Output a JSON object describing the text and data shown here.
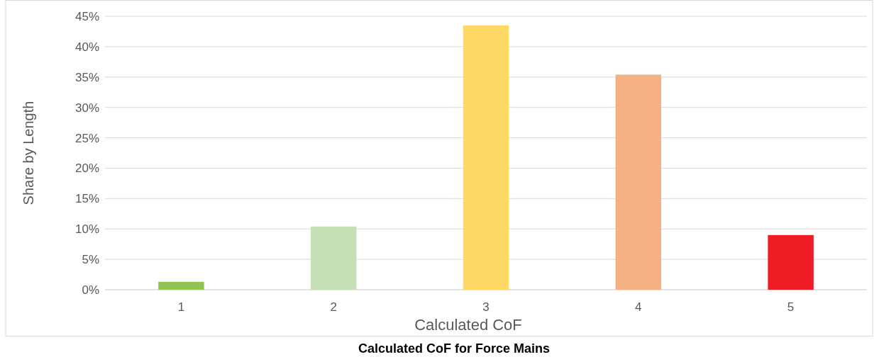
{
  "chart_data": {
    "type": "bar",
    "title": "Calculated CoF for Force Mains",
    "xlabel": "Calculated CoF",
    "ylabel": "Share by Length",
    "categories": [
      "1",
      "2",
      "3",
      "4",
      "5"
    ],
    "values": [
      1.3,
      10.4,
      43.5,
      35.4,
      9.0
    ],
    "colors": [
      "#92c353",
      "#c5e0b4",
      "#ffd966",
      "#f4b183",
      "#ee1c24"
    ],
    "ylim": [
      0,
      45
    ],
    "yticks": [
      {
        "value": 0,
        "label": "0%"
      },
      {
        "value": 5,
        "label": "5%"
      },
      {
        "value": 10,
        "label": "10%"
      },
      {
        "value": 15,
        "label": "15%"
      },
      {
        "value": 20,
        "label": "20%"
      },
      {
        "value": 25,
        "label": "25%"
      },
      {
        "value": 30,
        "label": "30%"
      },
      {
        "value": 35,
        "label": "35%"
      },
      {
        "value": 40,
        "label": "40%"
      },
      {
        "value": 45,
        "label": "45%"
      }
    ],
    "grid": "y"
  }
}
